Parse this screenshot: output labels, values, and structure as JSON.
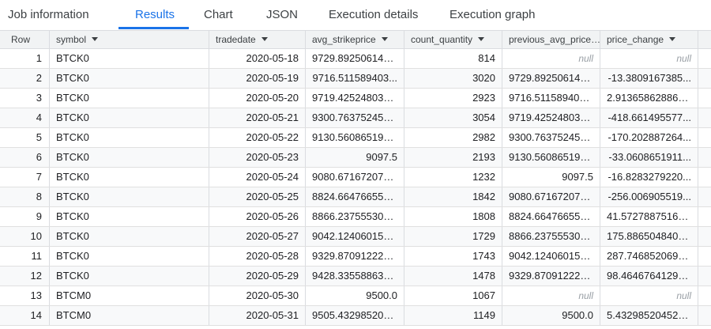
{
  "tabs": [
    {
      "label": "Job information"
    },
    {
      "label": "Results"
    },
    {
      "label": "Chart"
    },
    {
      "label": "JSON"
    },
    {
      "label": "Execution details"
    },
    {
      "label": "Execution graph"
    }
  ],
  "active_tab": "Results",
  "table": {
    "columns": [
      "Row",
      "symbol",
      "tradedate",
      "avg_strikeprice",
      "count_quantity",
      "previous_avg_price",
      "price_change"
    ],
    "rows": [
      {
        "row": "1",
        "symbol": "BTCK0",
        "tradedate": "2020-05-18",
        "avg_strikeprice": "9729.892506142...",
        "count_quantity": "814",
        "previous_avg_price": "null",
        "price_change": "null"
      },
      {
        "row": "2",
        "symbol": "BTCK0",
        "tradedate": "2020-05-19",
        "avg_strikeprice": "9716.511589403...",
        "count_quantity": "3020",
        "previous_avg_price": "9729.892506142...",
        "price_change": "-13.3809167385..."
      },
      {
        "row": "3",
        "symbol": "BTCK0",
        "tradedate": "2020-05-20",
        "avg_strikeprice": "9719.425248032...",
        "count_quantity": "2923",
        "previous_avg_price": "9716.511589403...",
        "price_change": "2.913658628869..."
      },
      {
        "row": "4",
        "symbol": "BTCK0",
        "tradedate": "2020-05-21",
        "avg_strikeprice": "9300.763752455...",
        "count_quantity": "3054",
        "previous_avg_price": "9719.425248032...",
        "price_change": "-418.661495577..."
      },
      {
        "row": "5",
        "symbol": "BTCK0",
        "tradedate": "2020-05-22",
        "avg_strikeprice": "9130.560865191...",
        "count_quantity": "2982",
        "previous_avg_price": "9300.763752455...",
        "price_change": "-170.202887264..."
      },
      {
        "row": "6",
        "symbol": "BTCK0",
        "tradedate": "2020-05-23",
        "avg_strikeprice": "9097.5",
        "count_quantity": "2193",
        "previous_avg_price": "9130.560865191...",
        "price_change": "-33.0608651911..."
      },
      {
        "row": "7",
        "symbol": "BTCK0",
        "tradedate": "2020-05-24",
        "avg_strikeprice": "9080.671672077...",
        "count_quantity": "1232",
        "previous_avg_price": "9097.5",
        "price_change": "-16.8283279220..."
      },
      {
        "row": "8",
        "symbol": "BTCK0",
        "tradedate": "2020-05-25",
        "avg_strikeprice": "8824.664766558...",
        "count_quantity": "1842",
        "previous_avg_price": "9080.671672077...",
        "price_change": "-256.006905519..."
      },
      {
        "row": "9",
        "symbol": "BTCK0",
        "tradedate": "2020-05-26",
        "avg_strikeprice": "8866.237555309...",
        "count_quantity": "1808",
        "previous_avg_price": "8824.664766558...",
        "price_change": "41.57278875164..."
      },
      {
        "row": "10",
        "symbol": "BTCK0",
        "tradedate": "2020-05-27",
        "avg_strikeprice": "9042.124060150...",
        "count_quantity": "1729",
        "previous_avg_price": "8866.237555309...",
        "price_change": "175.8865048406..."
      },
      {
        "row": "11",
        "symbol": "BTCK0",
        "tradedate": "2020-05-28",
        "avg_strikeprice": "9329.870912220...",
        "count_quantity": "1743",
        "previous_avg_price": "9042.124060150...",
        "price_change": "287.7468520699..."
      },
      {
        "row": "12",
        "symbol": "BTCK0",
        "tradedate": "2020-05-29",
        "avg_strikeprice": "9428.335588633...",
        "count_quantity": "1478",
        "previous_avg_price": "9329.870912220...",
        "price_change": "98.46467641297..."
      },
      {
        "row": "13",
        "symbol": "BTCM0",
        "tradedate": "2020-05-30",
        "avg_strikeprice": "9500.0",
        "count_quantity": "1067",
        "previous_avg_price": "null",
        "price_change": "null"
      },
      {
        "row": "14",
        "symbol": "BTCM0",
        "tradedate": "2020-05-31",
        "avg_strikeprice": "9505.432985204...",
        "count_quantity": "1149",
        "previous_avg_price": "9500.0",
        "price_change": "5.432985204524..."
      }
    ]
  },
  "colors": {
    "accent": "#1a73e8",
    "header_bg": "#f1f3f4",
    "alt_row_bg": "#f8f9fa",
    "grid_line": "#dadce0",
    "null_text": "#9aa0a6"
  }
}
